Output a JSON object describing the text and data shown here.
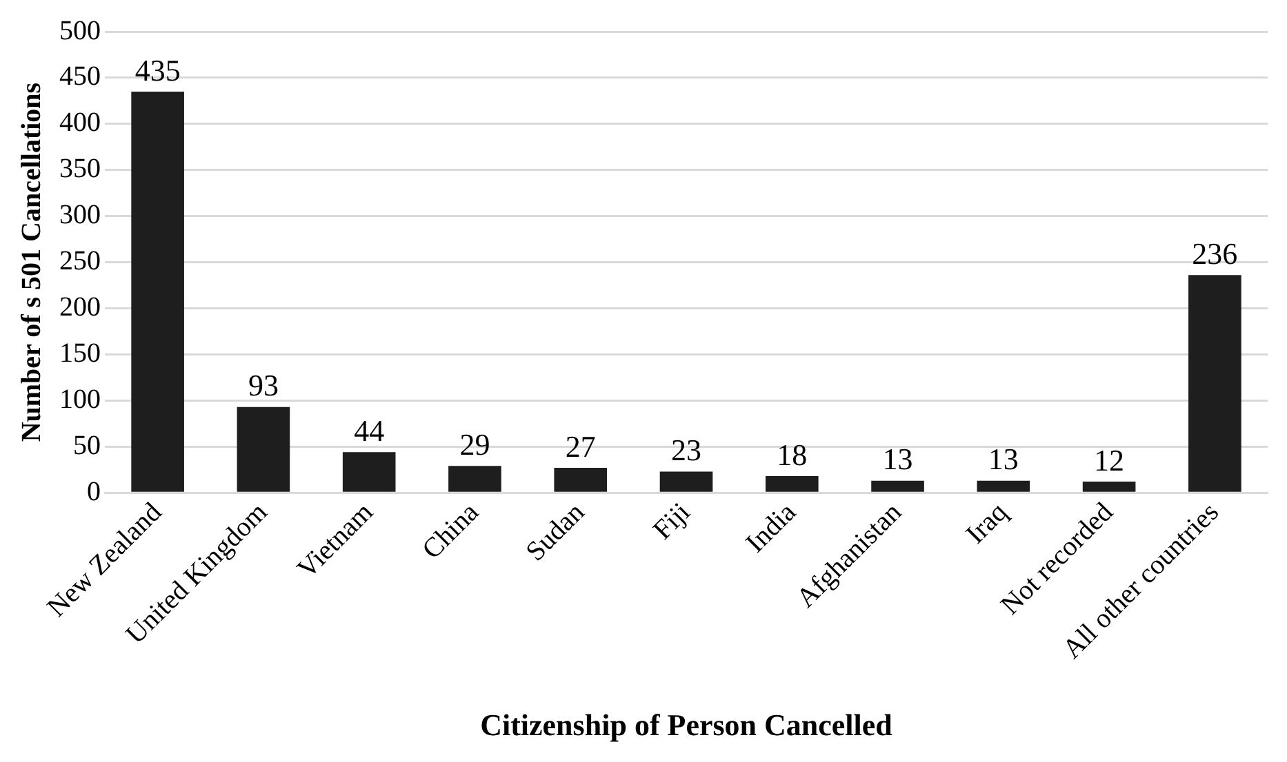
{
  "chart_data": {
    "type": "bar",
    "xlabel": "Citizenship of Person Cancelled",
    "ylabel": "Number of s 501 Cancellations",
    "categories": [
      "New Zealand",
      "United Kingdom",
      "Vietnam",
      "China",
      "Sudan",
      "Fiji",
      "India",
      "Afghanistan",
      "Iraq",
      "Not recorded",
      "All other countries"
    ],
    "values": [
      435,
      93,
      44,
      29,
      27,
      23,
      18,
      13,
      13,
      12,
      236
    ],
    "color": "#1e1e1e",
    "ylim": [
      0,
      500
    ],
    "yticks": [
      0,
      50,
      100,
      150,
      200,
      250,
      300,
      350,
      400,
      450,
      500
    ],
    "grid": "y",
    "legend": false,
    "data_labels": true
  }
}
